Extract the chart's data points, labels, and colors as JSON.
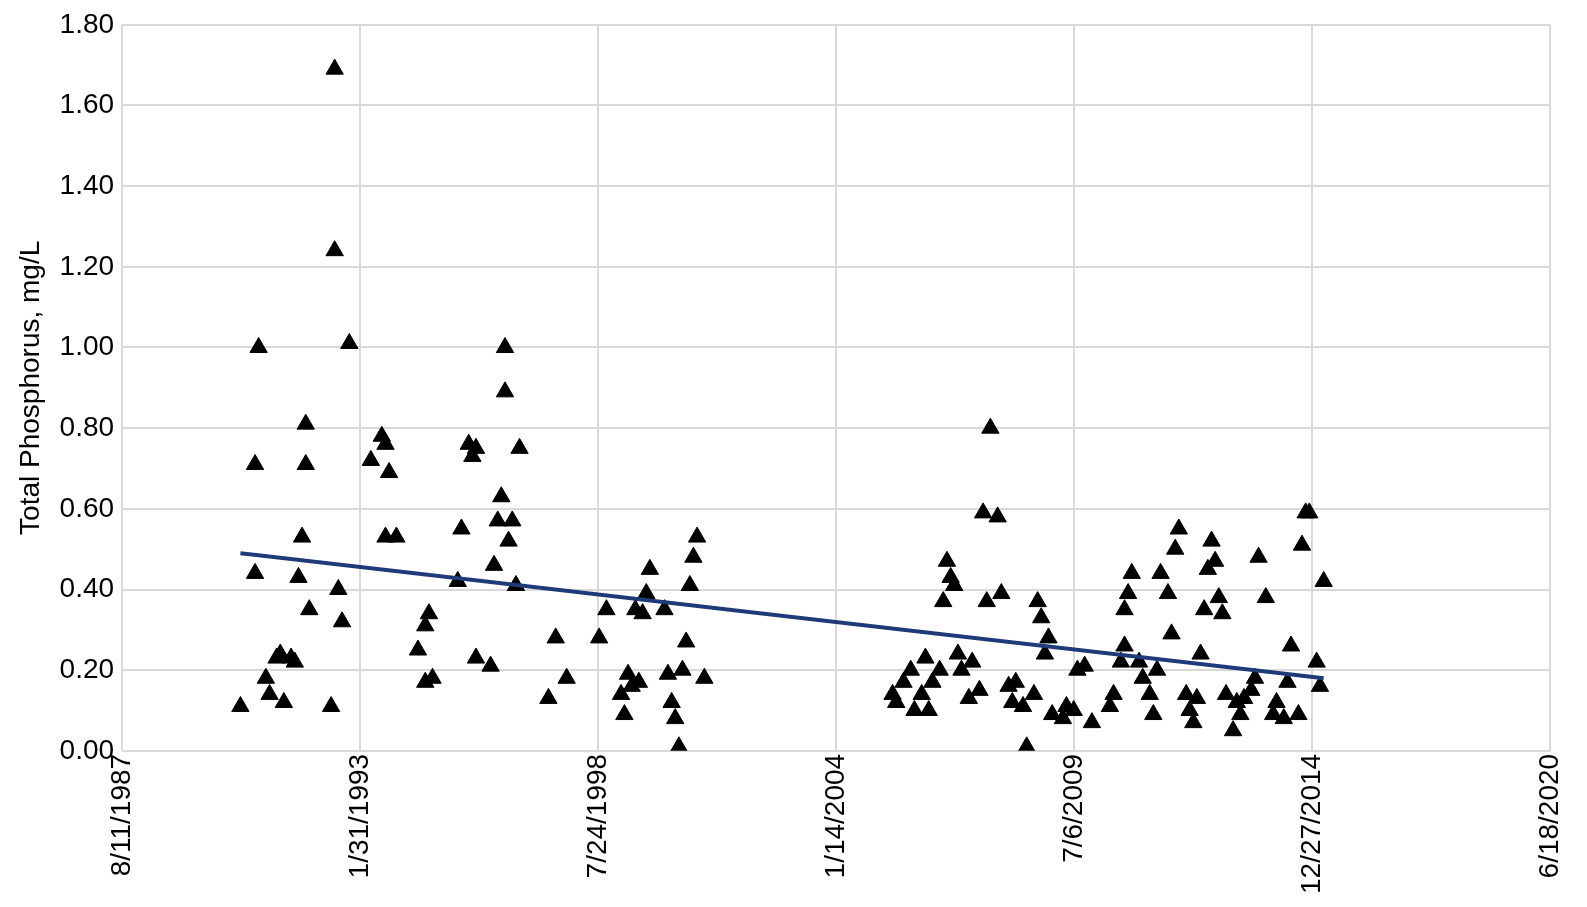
{
  "chart_data": {
    "type": "scatter",
    "ylabel": "Total Phosphorus, mg/L",
    "grid": true,
    "xlim": [
      "1987-08-11",
      "2020-06-18"
    ],
    "xticks": [
      {
        "value": "1987-08-11",
        "label": "8/11/1987"
      },
      {
        "value": "1993-01-31",
        "label": "1/31/1993"
      },
      {
        "value": "1998-07-24",
        "label": "7/24/1998"
      },
      {
        "value": "2004-01-14",
        "label": "1/14/2004"
      },
      {
        "value": "2009-07-06",
        "label": "7/6/2009"
      },
      {
        "value": "2014-12-27",
        "label": "12/27/2014"
      },
      {
        "value": "2020-06-18",
        "label": "6/18/2020"
      }
    ],
    "ylim": [
      0,
      1.8
    ],
    "yticks": [
      {
        "value": 0,
        "label": "0.00"
      },
      {
        "value": 0.2,
        "label": "0.20"
      },
      {
        "value": 0.4,
        "label": "0.40"
      },
      {
        "value": 0.6,
        "label": "0.60"
      },
      {
        "value": 0.8,
        "label": "0.80"
      },
      {
        "value": 1,
        "label": "1.00"
      },
      {
        "value": 1.2,
        "label": "1.20"
      },
      {
        "value": 1.4,
        "label": "1.40"
      },
      {
        "value": 1.6,
        "label": "1.60"
      },
      {
        "value": 1.8,
        "label": "1.80"
      }
    ],
    "series": [
      {
        "marker": "triangle",
        "color": "#000000",
        "x": [
          "1990-05",
          "1990-09",
          "1990-09",
          "1990-10",
          "1990-12",
          "1991-01",
          "1991-03",
          "1991-04",
          "1991-05",
          "1991-07",
          "1991-08",
          "1991-09",
          "1991-10",
          "1991-11",
          "1991-11",
          "1991-12",
          "1992-06",
          "1992-07",
          "1992-07",
          "1992-08",
          "1992-09",
          "1992-11",
          "1993-05",
          "1993-08",
          "1993-09",
          "1993-10",
          "1993-09",
          "1993-12",
          "1994-06",
          "1994-08",
          "1994-08",
          "1994-09",
          "1994-10",
          "1995-05",
          "1995-06",
          "1995-08",
          "1995-09",
          "1995-10",
          "1995-10",
          "1996-02",
          "1996-03",
          "1996-04",
          "1996-05",
          "1996-06",
          "1996-06",
          "1996-07",
          "1996-08",
          "1996-09",
          "1996-10",
          "1997-06",
          "1997-08",
          "1997-11",
          "1998-08",
          "1998-10",
          "1999-02",
          "1999-03",
          "1999-04",
          "1999-05",
          "1999-06",
          "1999-07",
          "1999-08",
          "1999-09",
          "1999-10",
          "2000-02",
          "2000-03",
          "2000-04",
          "2000-05",
          "2000-06",
          "2000-07",
          "2000-08",
          "2000-09",
          "2000-10",
          "2000-11",
          "2001-01",
          "2005-05",
          "2005-06",
          "2005-08",
          "2005-10",
          "2005-11",
          "2006-01",
          "2006-02",
          "2006-03",
          "2006-04",
          "2006-06",
          "2006-07",
          "2006-08",
          "2006-09",
          "2006-10",
          "2006-11",
          "2006-12",
          "2007-02",
          "2007-03",
          "2007-05",
          "2007-06",
          "2007-07",
          "2007-08",
          "2007-10",
          "2007-11",
          "2008-01",
          "2008-02",
          "2008-03",
          "2008-05",
          "2008-06",
          "2008-08",
          "2008-09",
          "2008-10",
          "2008-11",
          "2008-12",
          "2009-01",
          "2009-04",
          "2009-05",
          "2009-07",
          "2009-08",
          "2009-10",
          "2009-12",
          "2010-05",
          "2010-06",
          "2010-08",
          "2010-09",
          "2010-09",
          "2010-10",
          "2010-11",
          "2011-01",
          "2011-02",
          "2011-04",
          "2011-05",
          "2011-06",
          "2011-07",
          "2011-09",
          "2011-10",
          "2011-11",
          "2011-12",
          "2012-02",
          "2012-03",
          "2012-04",
          "2012-05",
          "2012-06",
          "2012-07",
          "2012-08",
          "2012-09",
          "2012-10",
          "2012-11",
          "2012-12",
          "2013-01",
          "2013-03",
          "2013-04",
          "2013-05",
          "2013-06",
          "2013-08",
          "2013-09",
          "2013-10",
          "2013-12",
          "2014-02",
          "2014-03",
          "2014-05",
          "2014-06",
          "2014-07",
          "2014-09",
          "2014-10",
          "2014-11",
          "2014-12",
          "2015-02",
          "2015-03",
          "2015-04"
        ],
        "values": [
          0.11,
          0.44,
          0.71,
          1.0,
          0.18,
          0.14,
          0.23,
          0.24,
          0.12,
          0.23,
          0.22,
          0.43,
          0.53,
          0.81,
          0.71,
          0.35,
          0.11,
          1.24,
          1.69,
          0.4,
          0.32,
          1.01,
          0.72,
          0.78,
          0.76,
          0.69,
          0.53,
          0.53,
          0.25,
          0.17,
          0.31,
          0.34,
          0.18,
          0.42,
          0.55,
          0.76,
          0.73,
          0.75,
          0.23,
          0.21,
          0.46,
          0.57,
          0.63,
          0.89,
          1.0,
          0.52,
          0.57,
          0.41,
          0.75,
          0.13,
          0.28,
          0.18,
          0.28,
          0.35,
          0.14,
          0.09,
          0.19,
          0.16,
          0.35,
          0.17,
          0.34,
          0.39,
          0.45,
          0.35,
          0.19,
          0.12,
          0.08,
          0.01,
          0.2,
          0.27,
          0.41,
          0.48,
          0.53,
          0.18,
          0.14,
          0.12,
          0.17,
          0.2,
          0.1,
          0.14,
          0.23,
          0.1,
          0.17,
          0.2,
          0.37,
          0.47,
          0.43,
          0.41,
          0.24,
          0.2,
          0.13,
          0.22,
          0.15,
          0.59,
          0.37,
          0.8,
          0.58,
          0.39,
          0.16,
          0.12,
          0.17,
          0.11,
          0.01,
          0.14,
          0.37,
          0.33,
          0.24,
          0.28,
          0.09,
          0.08,
          0.11,
          0.1,
          0.2,
          0.21,
          0.07,
          0.11,
          0.14,
          0.22,
          0.26,
          0.35,
          0.39,
          0.44,
          0.22,
          0.18,
          0.14,
          0.09,
          0.2,
          0.44,
          0.39,
          0.29,
          0.5,
          0.55,
          0.14,
          0.1,
          0.07,
          0.13,
          0.24,
          0.35,
          0.45,
          0.52,
          0.47,
          0.38,
          0.34,
          0.14,
          0.05,
          0.12,
          0.09,
          0.13,
          0.15,
          0.18,
          0.48,
          0.38,
          0.09,
          0.12,
          0.08,
          0.17,
          0.26,
          0.09,
          0.51,
          0.59,
          0.59,
          0.22,
          0.16,
          0.42
        ]
      },
      {
        "type": "line",
        "color": "#1f3a78",
        "x": [
          "1990-05",
          "2015-04"
        ],
        "values": [
          0.49,
          0.18
        ]
      }
    ]
  }
}
